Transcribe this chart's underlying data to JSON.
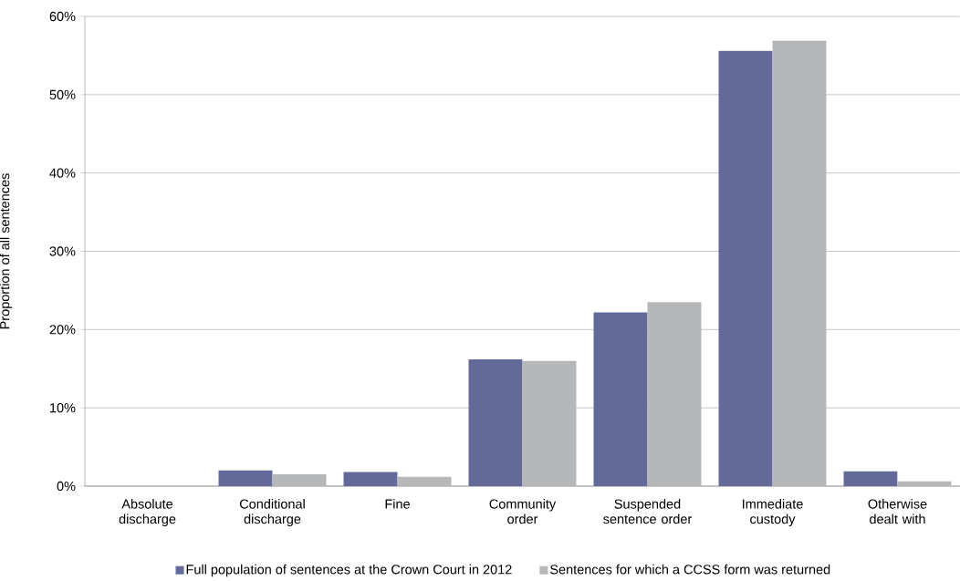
{
  "chart_data": {
    "type": "bar",
    "ylabel": "Proportion of all sentences",
    "categories": [
      "Absolute discharge",
      "Conditional discharge",
      "Fine",
      "Community order",
      "Suspended sentence order",
      "Immediate custody",
      "Otherwise dealt with"
    ],
    "series": [
      {
        "name": "Full population of sentences at the Crown Court in 2012",
        "color": "#636a9a",
        "values": [
          0,
          2.0,
          1.8,
          16.2,
          22.2,
          55.6,
          1.9
        ]
      },
      {
        "name": "Sentences for which a CCSS form was returned",
        "color": "#b6b7b9",
        "values": [
          0,
          1.5,
          1.2,
          16.0,
          23.5,
          56.9,
          0.6
        ]
      }
    ],
    "ylim": [
      0,
      60
    ],
    "yticks": [
      {
        "value": 0,
        "label": "0%"
      },
      {
        "value": 10,
        "label": "10%"
      },
      {
        "value": 20,
        "label": "20%"
      },
      {
        "value": 30,
        "label": "30%"
      },
      {
        "value": 40,
        "label": "40%"
      },
      {
        "value": 50,
        "label": "50%"
      },
      {
        "value": 60,
        "label": "60%"
      }
    ],
    "grid": "y",
    "legend": "bottom"
  }
}
